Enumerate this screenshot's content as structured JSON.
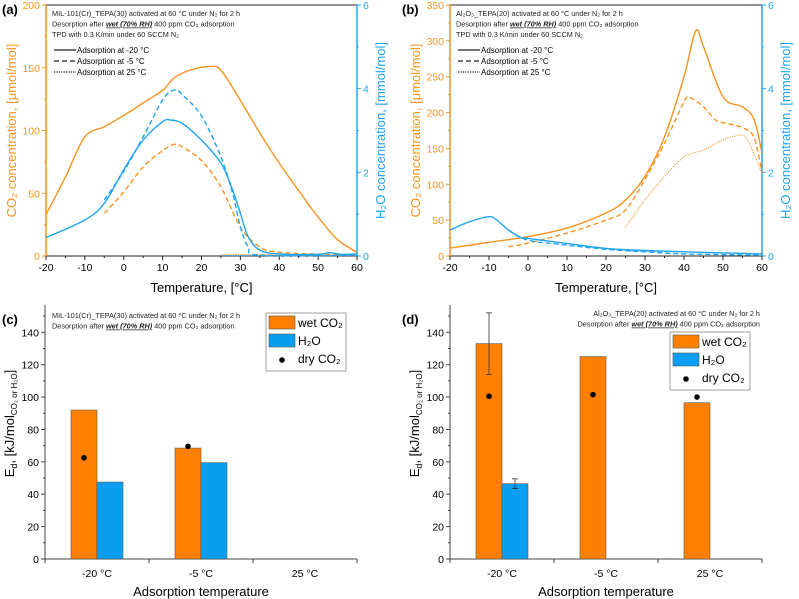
{
  "colors": {
    "co2": "#F7931E",
    "h2o": "#1EA5F0",
    "bar_co2": "#FF8000",
    "bar_h2o": "#0A9EF0",
    "dry": "#000000"
  },
  "chart_data": [
    {
      "panel": "(a)",
      "type": "line",
      "xlabel": "Temperature, [°C]",
      "ylabel": "CO₂ concentration, [μmol/mol]",
      "y2label": "H₂O concentration, [mmol/mol]",
      "xlim": [
        -20,
        60
      ],
      "ylim": [
        0,
        200
      ],
      "y2lim": [
        0,
        6
      ],
      "xticks": [
        "-20",
        "-10",
        "0",
        "10",
        "20",
        "30",
        "40",
        "50",
        "60"
      ],
      "yticks": [
        "0",
        "50",
        "100",
        "150",
        "200"
      ],
      "y2ticks": [
        "0",
        "2",
        "4",
        "6"
      ],
      "annotations": [
        "MIL-101(Cr)_TEPA(30) activated at 60 °C under N₂ for 2 h",
        {
          "pre": "Desorption after ",
          "emph": "wet (70% RH)",
          "post": " 400 ppm CO₂ adsorption"
        },
        "TPD with 0.3 K/min under 60 SCCM N₂"
      ],
      "legend": [
        {
          "label": "Adsorption at -20 °C",
          "style": "solid"
        },
        {
          "label": "Adsorption at -5 °C",
          "style": "dashed"
        },
        {
          "label": "Adsorption at 25 °C",
          "style": "dotted"
        }
      ],
      "series": [
        {
          "gas": "CO2",
          "axis": "left",
          "style": "solid",
          "points": [
            [
              -20,
              33
            ],
            [
              -15,
              63
            ],
            [
              -10,
              95
            ],
            [
              -5,
              103
            ],
            [
              0,
              112
            ],
            [
              5,
              122
            ],
            [
              10,
              132
            ],
            [
              13,
              142
            ],
            [
              17,
              148
            ],
            [
              22,
              151
            ],
            [
              25,
              148
            ],
            [
              30,
              124
            ],
            [
              35,
              98
            ],
            [
              40,
              74
            ],
            [
              45,
              52
            ],
            [
              50,
              31
            ],
            [
              55,
              13
            ],
            [
              60,
              3
            ]
          ]
        },
        {
          "gas": "CO2",
          "axis": "left",
          "style": "dashed",
          "points": [
            [
              -5,
              34
            ],
            [
              0,
              51
            ],
            [
              5,
              71
            ],
            [
              10,
              84
            ],
            [
              13,
              89
            ],
            [
              15,
              87
            ],
            [
              20,
              76
            ],
            [
              25,
              55
            ],
            [
              30,
              23
            ],
            [
              35,
              7
            ],
            [
              40,
              3
            ],
            [
              50,
              1.5
            ],
            [
              60,
              1
            ]
          ]
        },
        {
          "gas": "CO2",
          "axis": "left",
          "style": "dotted",
          "points": [
            [
              25,
              1
            ],
            [
              40,
              1.2
            ],
            [
              50,
              1
            ],
            [
              60,
              1
            ]
          ]
        },
        {
          "gas": "H2O",
          "axis": "right",
          "style": "solid",
          "points": [
            [
              -20,
              0.44
            ],
            [
              -10,
              0.86
            ],
            [
              -5,
              1.26
            ],
            [
              0,
              2.06
            ],
            [
              5,
              2.77
            ],
            [
              10,
              3.21
            ],
            [
              12,
              3.25
            ],
            [
              15,
              3.17
            ],
            [
              20,
              2.77
            ],
            [
              25,
              2.22
            ],
            [
              28,
              1.58
            ],
            [
              30,
              1.02
            ],
            [
              32,
              0.46
            ],
            [
              35,
              0.14
            ],
            [
              40,
              0.05
            ],
            [
              50,
              0.04
            ],
            [
              53,
              0.08
            ],
            [
              56,
              0.04
            ],
            [
              60,
              0.05
            ]
          ]
        },
        {
          "gas": "H2O",
          "axis": "right",
          "style": "dashed",
          "points": [
            [
              -5,
              1.34
            ],
            [
              0,
              2.02
            ],
            [
              5,
              2.85
            ],
            [
              10,
              3.73
            ],
            [
              13,
              3.97
            ],
            [
              15,
              3.86
            ],
            [
              20,
              3.35
            ],
            [
              25,
              2.37
            ],
            [
              28,
              1.5
            ],
            [
              30,
              0.7
            ],
            [
              32,
              0.22
            ],
            [
              35,
              0.02
            ],
            [
              60,
              0.02
            ]
          ]
        },
        {
          "gas": "H2O",
          "axis": "right",
          "style": "dotted",
          "points": [
            [
              25,
              0.01
            ],
            [
              60,
              0.01
            ]
          ]
        }
      ]
    },
    {
      "panel": "(b)",
      "type": "line",
      "xlabel": "Temperature, [°C]",
      "ylabel": "CO₂ concentration, [μmol/mol]",
      "y2label": "H₂O concentration, [mmol/mol]",
      "xlim": [
        -20,
        60
      ],
      "ylim": [
        0,
        350
      ],
      "y2lim": [
        0,
        6
      ],
      "xticks": [
        "-20",
        "-10",
        "0",
        "10",
        "20",
        "30",
        "40",
        "50",
        "60"
      ],
      "yticks": [
        "0",
        "50",
        "100",
        "150",
        "200",
        "250",
        "300",
        "350"
      ],
      "y2ticks": [
        "0",
        "2",
        "4",
        "6"
      ],
      "annotations": [
        "Al₂O₃_TEPA(20) activated at 60 °C under N₂ for 2 h",
        {
          "pre": "Desorption after ",
          "emph": "wet (70% RH)",
          "post": " 400 ppm CO₂ adsorption"
        },
        "TPD with 0.3 K/min under 60 SCCM N₂"
      ],
      "legend": [
        {
          "label": "Adsorption at -20 °C",
          "style": "solid"
        },
        {
          "label": "Adsorption at -5 °C",
          "style": "dashed"
        },
        {
          "label": "Adsorption at 25 °C",
          "style": "dotted"
        }
      ],
      "series": [
        {
          "gas": "CO2",
          "axis": "left",
          "style": "solid",
          "points": [
            [
              -20,
              11
            ],
            [
              -10,
              19
            ],
            [
              0,
              27
            ],
            [
              10,
              39
            ],
            [
              20,
              60
            ],
            [
              25,
              78
            ],
            [
              30,
              111
            ],
            [
              35,
              166
            ],
            [
              40,
              250
            ],
            [
              43,
              314
            ],
            [
              45,
              292
            ],
            [
              50,
              222
            ],
            [
              55,
              208
            ],
            [
              58,
              190
            ],
            [
              60,
              143
            ]
          ]
        },
        {
          "gas": "CO2",
          "axis": "left",
          "style": "dashed",
          "points": [
            [
              -5,
              13
            ],
            [
              0,
              18
            ],
            [
              10,
              32
            ],
            [
              20,
              50
            ],
            [
              25,
              64
            ],
            [
              30,
              107
            ],
            [
              35,
              157
            ],
            [
              40,
              215
            ],
            [
              41.5,
              221
            ],
            [
              45,
              208
            ],
            [
              48,
              190
            ],
            [
              50,
              186
            ],
            [
              55,
              179
            ],
            [
              58,
              165
            ],
            [
              60,
              115
            ]
          ]
        },
        {
          "gas": "CO2",
          "axis": "left",
          "style": "dotted",
          "points": [
            [
              25,
              40
            ],
            [
              30,
              78
            ],
            [
              35,
              111
            ],
            [
              40,
              138
            ],
            [
              45,
              148
            ],
            [
              50,
              162
            ],
            [
              53,
              167
            ],
            [
              56,
              164
            ],
            [
              60,
              115
            ]
          ]
        },
        {
          "gas": "H2O",
          "axis": "right",
          "style": "solid",
          "points": [
            [
              -20,
              0.62
            ],
            [
              -15,
              0.82
            ],
            [
              -10,
              0.94
            ],
            [
              -8,
              0.86
            ],
            [
              -5,
              0.62
            ],
            [
              -2,
              0.45
            ],
            [
              0,
              0.42
            ],
            [
              10,
              0.3
            ],
            [
              20,
              0.18
            ],
            [
              28,
              0.14
            ],
            [
              40,
              0.1
            ],
            [
              60,
              0.05
            ]
          ]
        },
        {
          "gas": "H2O",
          "axis": "right",
          "style": "dashed",
          "points": [
            [
              -5,
              0.62
            ],
            [
              0,
              0.38
            ],
            [
              10,
              0.26
            ],
            [
              20,
              0.16
            ],
            [
              30,
              0.1
            ],
            [
              40,
              0.05
            ],
            [
              60,
              0.02
            ]
          ]
        },
        {
          "gas": "H2O",
          "axis": "right",
          "style": "dotted",
          "points": [
            [
              25,
              0.12
            ],
            [
              40,
              0.1
            ],
            [
              60,
              0.05
            ]
          ]
        }
      ]
    },
    {
      "panel": "(c)",
      "type": "bar",
      "xlabel": "Adsorption temperature",
      "ylabel": {
        "main": "E",
        "sub": "d",
        "mid": ", [kJ/mol",
        "sub2": "CO₂ or H₂O",
        "end": "]"
      },
      "ylim": [
        0,
        155
      ],
      "yticks": [
        "0",
        "20",
        "40",
        "60",
        "80",
        "100",
        "120",
        "140"
      ],
      "categories": [
        "-20 °C",
        "-5 °C",
        "25 °C"
      ],
      "annotations": [
        "MIL-101(Cr)_TEPA(30) activated at 60 °C under N₂ for 2 h",
        {
          "pre": "Desorption after ",
          "emph": "wet (70% RH)",
          "post": " 400 ppm CO₂ adsorption"
        }
      ],
      "legend": [
        "wet CO₂",
        "H₂O",
        "dry CO₂"
      ],
      "series": [
        {
          "name": "wet CO₂",
          "kind": "bar",
          "values": [
            92,
            68.5,
            null
          ],
          "errors": [
            null,
            null,
            null
          ]
        },
        {
          "name": "H₂O",
          "kind": "bar",
          "values": [
            47.5,
            59.5,
            null
          ],
          "errors": [
            null,
            null,
            null
          ]
        },
        {
          "name": "dry CO₂",
          "kind": "point",
          "values": [
            62.5,
            69.5,
            null
          ]
        }
      ]
    },
    {
      "panel": "(d)",
      "type": "bar",
      "xlabel": "Adsorption temperature",
      "ylabel": {
        "main": "E",
        "sub": "d",
        "mid": ", [kJ/mol",
        "sub2": "CO₂ or H₂O",
        "end": "]"
      },
      "ylim": [
        0,
        155
      ],
      "yticks": [
        "0",
        "20",
        "40",
        "60",
        "80",
        "100",
        "120",
        "140"
      ],
      "categories": [
        "-20 °C",
        "-5 °C",
        "25 °C"
      ],
      "annotations": [
        "Al₂O₃_TEPA(20) activated at 60 °C under N₂ for 2 h",
        {
          "pre": "Desorption after ",
          "emph": "wet (70% RH)",
          "post": " 400 ppm CO₂ adsorption"
        }
      ],
      "legend": [
        "wet CO₂",
        "H₂O",
        "dry CO₂"
      ],
      "series": [
        {
          "name": "wet CO₂",
          "kind": "bar",
          "values": [
            133,
            125,
            96.5
          ],
          "errors": [
            19,
            null,
            null
          ]
        },
        {
          "name": "H₂O",
          "kind": "bar",
          "values": [
            46.5,
            null,
            null
          ],
          "errors": [
            3,
            null,
            null
          ]
        },
        {
          "name": "dry CO₂",
          "kind": "point",
          "values": [
            100.5,
            101.5,
            100
          ]
        }
      ]
    }
  ]
}
